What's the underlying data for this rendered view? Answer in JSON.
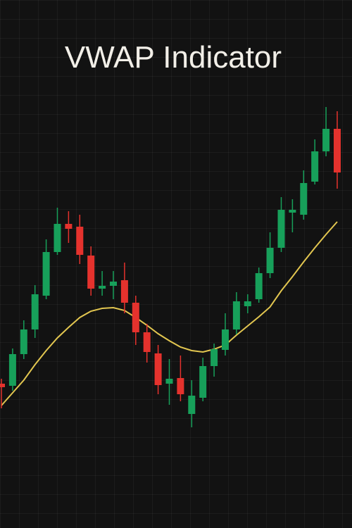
{
  "chart_data": {
    "type": "candlestick",
    "title": "VWAP Indicator",
    "ylim": [
      0,
      750
    ],
    "up_color": "#17a05a",
    "down_color": "#e5322d",
    "open": [
      205,
      202,
      247,
      282,
      330,
      392,
      432,
      428,
      387,
      340,
      344,
      352,
      320,
      278,
      248,
      205,
      213,
      162,
      185,
      230,
      253,
      282,
      315,
      325,
      362,
      398,
      448,
      445,
      492,
      535,
      567
    ],
    "high": [
      212,
      255,
      295,
      345,
      410,
      455,
      450,
      445,
      400,
      365,
      365,
      377,
      330,
      290,
      260,
      240,
      245,
      210,
      242,
      262,
      305,
      335,
      332,
      370,
      420,
      470,
      467,
      508,
      552,
      598,
      592
    ],
    "low": [
      170,
      195,
      240,
      270,
      325,
      388,
      405,
      375,
      330,
      330,
      325,
      305,
      260,
      235,
      190,
      175,
      180,
      143,
      180,
      215,
      245,
      275,
      305,
      320,
      355,
      392,
      420,
      438,
      488,
      528,
      482
    ],
    "close": [
      200,
      247,
      282,
      332,
      392,
      432,
      425,
      388,
      340,
      344,
      350,
      320,
      278,
      250,
      203,
      212,
      190,
      188,
      230,
      254,
      282,
      322,
      322,
      362,
      398,
      452,
      452,
      490,
      535,
      567,
      505
    ],
    "vwap": {
      "color": "#e2c650",
      "values": [
        174,
        192,
        210,
        232,
        252,
        270,
        285,
        299,
        308,
        312,
        313,
        309,
        299,
        288,
        276,
        266,
        257,
        252,
        250,
        254,
        260,
        274,
        287,
        300,
        314,
        337,
        357,
        378,
        398,
        417,
        435
      ]
    }
  }
}
